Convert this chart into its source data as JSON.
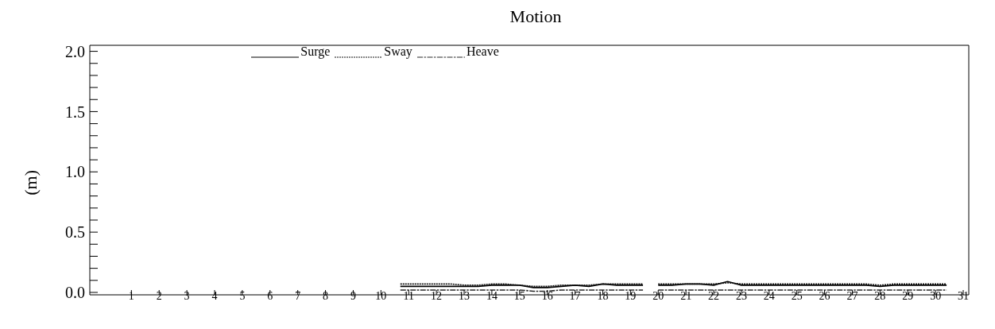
{
  "chart_data": {
    "type": "line",
    "title": "Motion",
    "ylabel": "(m)",
    "x": [
      10.7,
      11,
      11.5,
      12,
      12.5,
      13,
      13.5,
      14,
      14.5,
      15,
      15.5,
      16,
      16.5,
      17,
      17.5,
      18,
      18.5,
      19,
      19.45,
      19.7,
      20,
      20.5,
      21,
      21.5,
      22,
      22.5,
      23,
      23.5,
      24,
      24.5,
      25,
      25.5,
      26,
      26.5,
      27,
      27.5,
      28,
      28.5,
      29,
      29.5,
      30,
      30.4
    ],
    "series": [
      {
        "name": "Surge",
        "color": "#000000",
        "line_style": "solid",
        "values": [
          0.05,
          0.05,
          0.05,
          0.05,
          0.05,
          0.05,
          0.05,
          0.06,
          0.06,
          0.06,
          0.04,
          0.04,
          0.05,
          0.06,
          0.05,
          0.07,
          0.06,
          0.06,
          0.06,
          null,
          0.06,
          0.06,
          0.07,
          0.07,
          0.06,
          0.09,
          0.06,
          0.06,
          0.06,
          0.06,
          0.06,
          0.06,
          0.06,
          0.06,
          0.06,
          0.06,
          0.05,
          0.06,
          0.06,
          0.06,
          0.06,
          0.06
        ]
      },
      {
        "name": "Sway",
        "color": "#141414",
        "line_style": "dotted",
        "values": [
          0.07,
          0.07,
          0.07,
          0.07,
          0.07,
          0.06,
          0.06,
          0.07,
          0.07,
          0.06,
          0.05,
          0.05,
          0.06,
          0.06,
          0.06,
          0.07,
          0.07,
          0.07,
          0.07,
          null,
          0.07,
          0.07,
          0.07,
          0.07,
          0.07,
          0.08,
          0.07,
          0.07,
          0.07,
          0.07,
          0.07,
          0.07,
          0.07,
          0.07,
          0.07,
          0.07,
          0.06,
          0.07,
          0.07,
          0.07,
          0.07,
          0.07
        ]
      },
      {
        "name": "Heave",
        "color": "#282828",
        "line_style": "dashed",
        "values": [
          0.02,
          0.02,
          0.02,
          0.02,
          0.02,
          0.02,
          0.02,
          0.02,
          0.02,
          0.02,
          0.01,
          0.01,
          0.02,
          0.02,
          0.02,
          0.02,
          0.02,
          0.02,
          0.02,
          null,
          0.02,
          0.02,
          0.02,
          0.02,
          0.02,
          0.02,
          0.02,
          0.02,
          0.02,
          0.02,
          0.02,
          0.02,
          0.02,
          0.02,
          0.02,
          0.02,
          0.02,
          0.02,
          0.02,
          0.02,
          0.02,
          0.02
        ]
      }
    ],
    "xlim": [
      -0.5,
      31.2
    ],
    "xticks": [
      1,
      2,
      3,
      4,
      5,
      6,
      7,
      8,
      9,
      10,
      11,
      12,
      13,
      14,
      15,
      16,
      17,
      18,
      19,
      20,
      21,
      22,
      23,
      24,
      25,
      26,
      27,
      28,
      29,
      30,
      31
    ],
    "ylim": [
      -0.02,
      2.05
    ],
    "yticks": [
      {
        "value": 0,
        "label": "0.0"
      },
      {
        "value": 0.1,
        "label": null
      },
      {
        "value": 0.2,
        "label": null
      },
      {
        "value": 0.3,
        "label": null
      },
      {
        "value": 0.4,
        "label": null
      },
      {
        "value": 0.5,
        "label": "0.5"
      },
      {
        "value": 0.6,
        "label": null
      },
      {
        "value": 0.7,
        "label": null
      },
      {
        "value": 0.8,
        "label": null
      },
      {
        "value": 0.9,
        "label": null
      },
      {
        "value": 1.0,
        "label": "1.0"
      },
      {
        "value": 1.1,
        "label": null
      },
      {
        "value": 1.2,
        "label": null
      },
      {
        "value": 1.3,
        "label": null
      },
      {
        "value": 1.4,
        "label": null
      },
      {
        "value": 1.5,
        "label": "1.5"
      },
      {
        "value": 1.6,
        "label": null
      },
      {
        "value": 1.7,
        "label": null
      },
      {
        "value": 1.8,
        "label": null
      },
      {
        "value": 1.9,
        "label": null
      },
      {
        "value": 2.0,
        "label": "2.0"
      }
    ],
    "grid": false,
    "legend": "top",
    "marker": "none"
  }
}
